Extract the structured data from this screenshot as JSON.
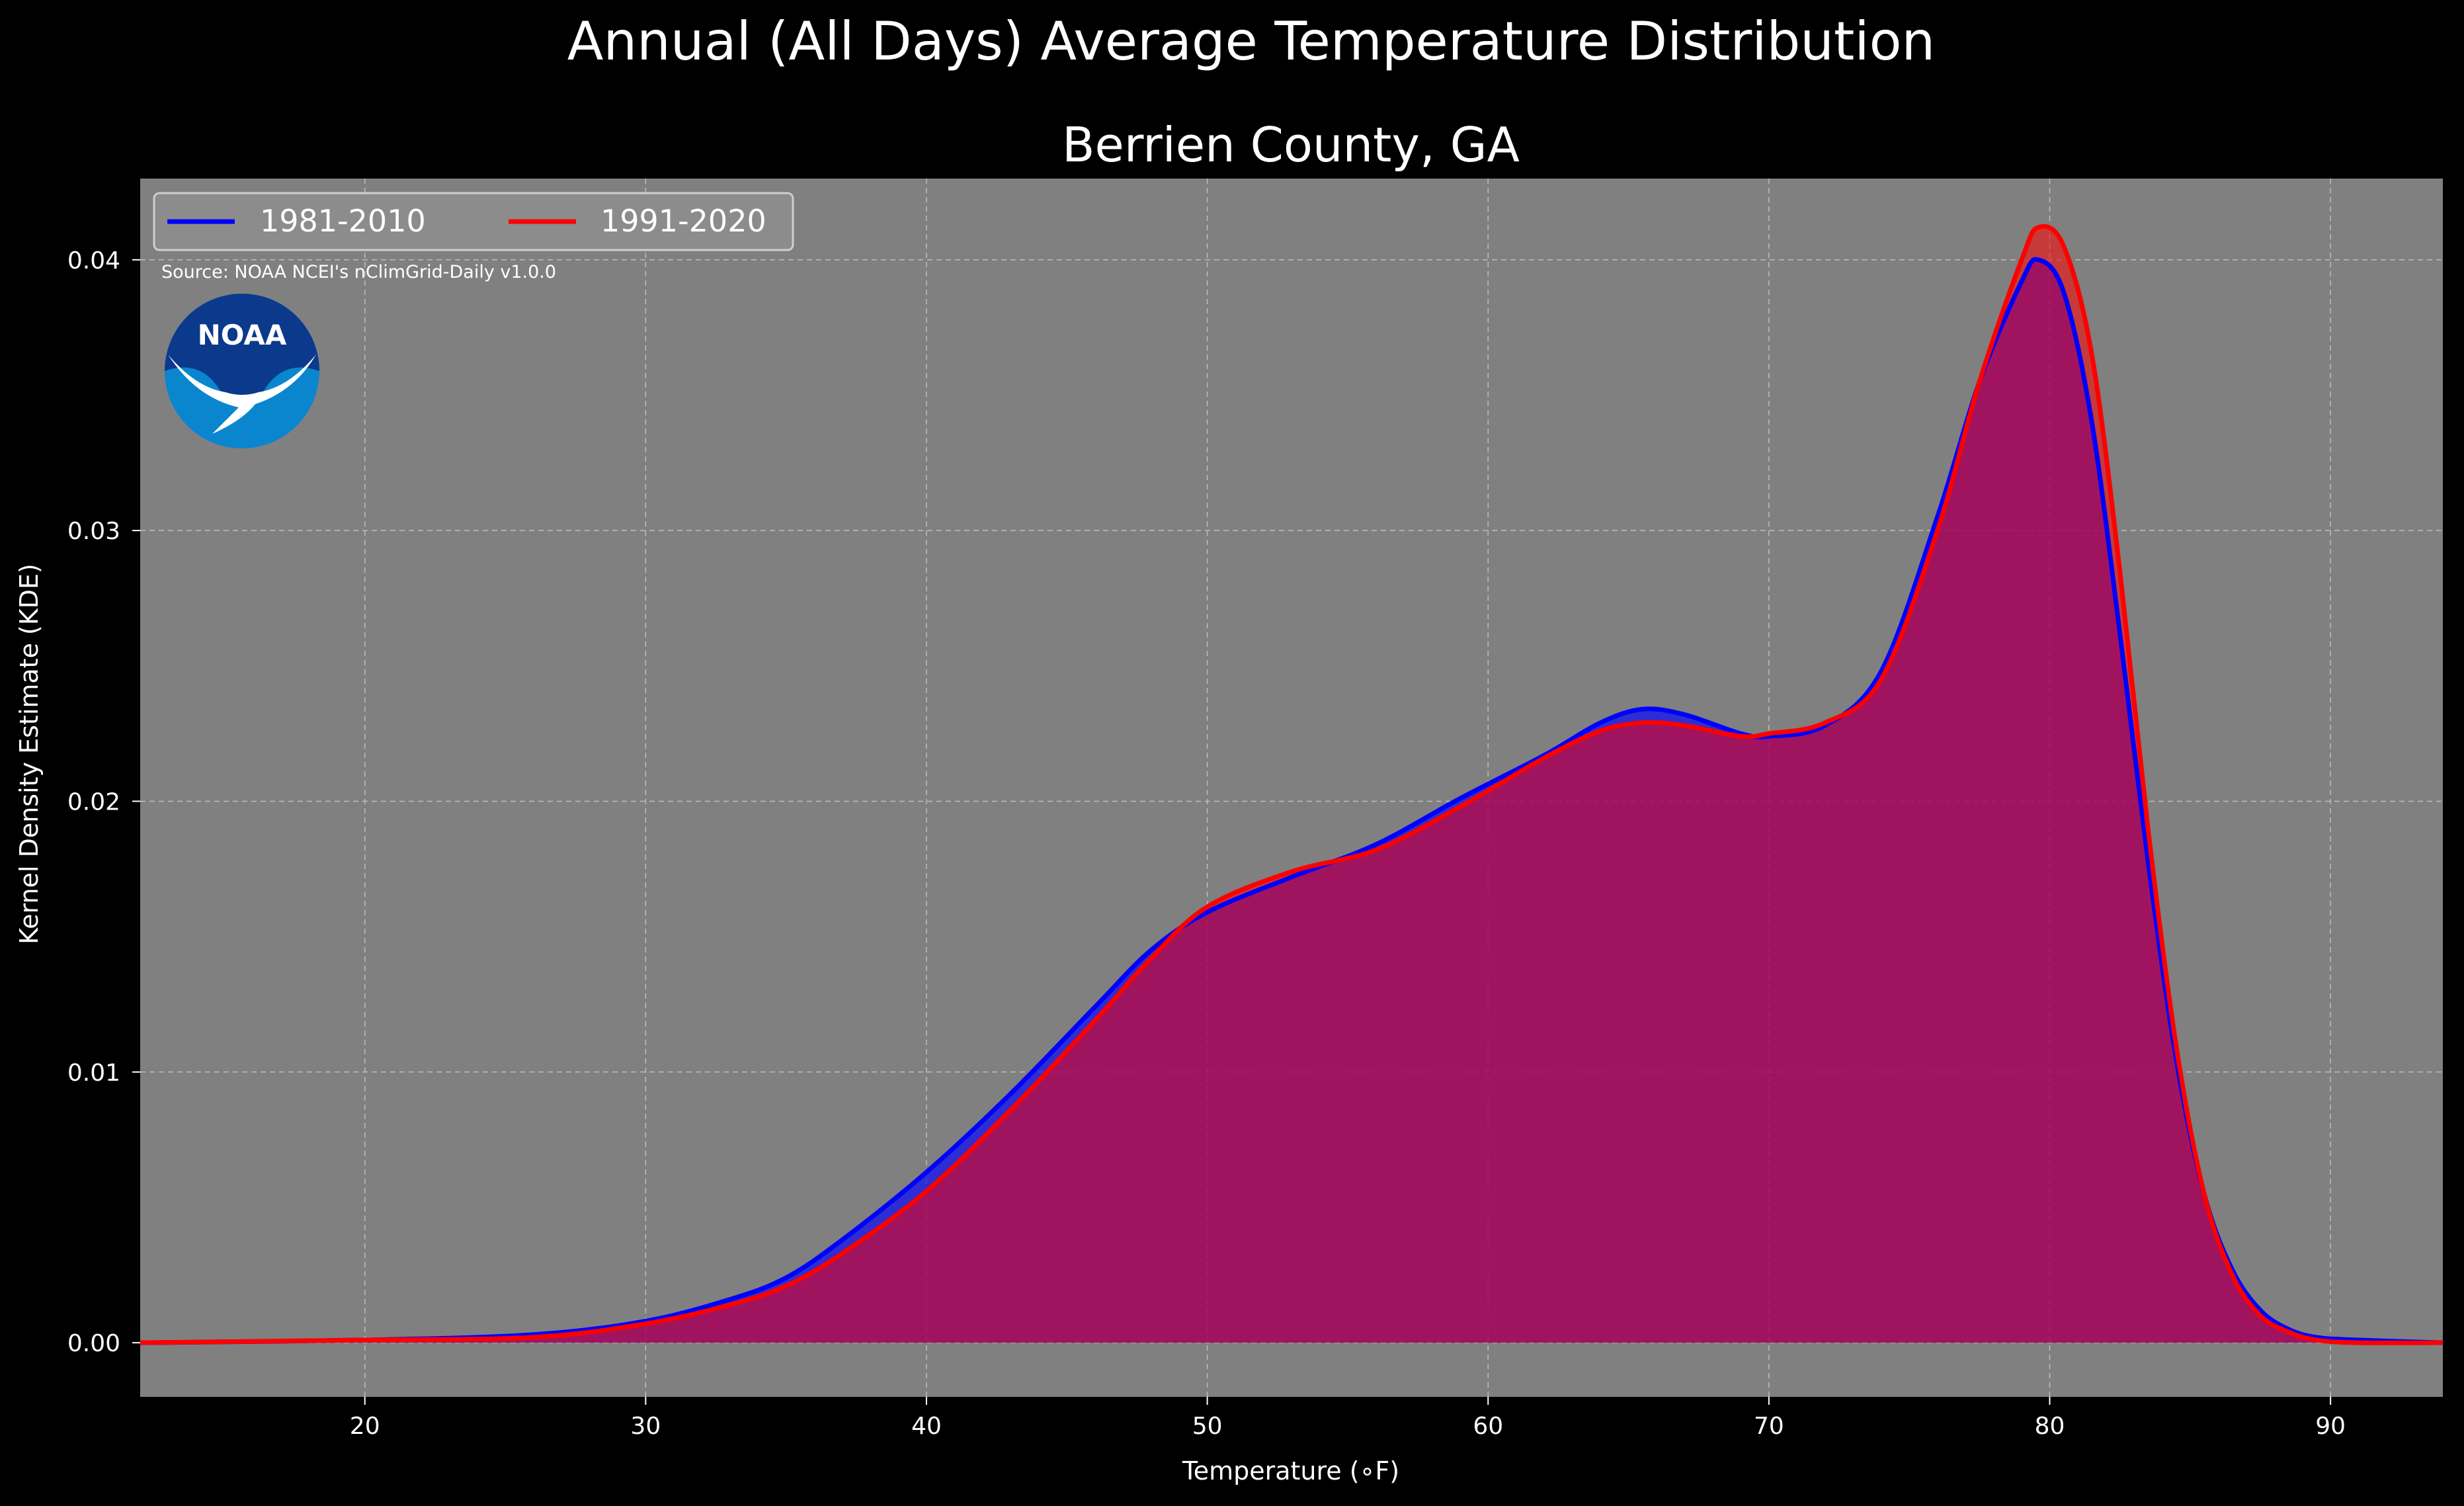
{
  "figure": {
    "suptitle": "Annual (All Days) Average Temperature Distribution",
    "source_note": "Source: NOAA NCEI's nClimGrid-Daily v1.0.0",
    "logo_text": "NOAA"
  },
  "colors": {
    "background": "#000000",
    "plot_bg": "#808080",
    "series_1981": "#0000ff",
    "series_1991": "#ff0000",
    "fill_blend": "#9e1e5c",
    "text": "#ffffff",
    "logo_dark": "#0b3a8c",
    "logo_light": "#0a86cf"
  },
  "chart_data": {
    "type": "area",
    "title": "Berrien County, GA",
    "xlabel": "Temperature ($^\\circ$F)",
    "xlabel_display": "Temperature (∘F)",
    "ylabel": "Kernel Density Estimate (KDE)",
    "xlim": [
      12,
      94
    ],
    "ylim": [
      -0.002,
      0.043
    ],
    "xticks": [
      20,
      30,
      40,
      50,
      60,
      70,
      80,
      90
    ],
    "yticks": [
      0.0,
      0.01,
      0.02,
      0.03,
      0.04
    ],
    "ytick_labels": [
      "0.00",
      "0.01",
      "0.02",
      "0.03",
      "0.04"
    ],
    "grid": true,
    "legend": {
      "placement": "top-left",
      "columns": 2
    },
    "series": [
      {
        "name": "1981-2010",
        "color": "#0000ff",
        "x": [
          12,
          20,
          26,
          30,
          33,
          35,
          37,
          40,
          43,
          46,
          48,
          50,
          53,
          56,
          59,
          62,
          64,
          65.5,
          67,
          69,
          70,
          72,
          74,
          76,
          77.5,
          79,
          79.6,
          80.5,
          81.5,
          82.5,
          83.5,
          84.5,
          85.5,
          86.5,
          87.5,
          88.5,
          89.5,
          91,
          94
        ],
        "values": [
          0.0,
          0.0001,
          0.0003,
          0.0008,
          0.0016,
          0.0024,
          0.0038,
          0.0063,
          0.0092,
          0.0124,
          0.0145,
          0.0159,
          0.0172,
          0.0184,
          0.0201,
          0.0217,
          0.0229,
          0.0234,
          0.0232,
          0.0225,
          0.0224,
          0.0228,
          0.0248,
          0.0305,
          0.0355,
          0.0392,
          0.04,
          0.0388,
          0.034,
          0.0262,
          0.0178,
          0.0105,
          0.0055,
          0.0027,
          0.0012,
          0.0005,
          0.0002,
          0.0001,
          0.0
        ]
      },
      {
        "name": "1991-2020",
        "color": "#ff0000",
        "x": [
          12,
          20,
          26,
          30,
          33,
          35,
          37,
          40,
          43,
          46,
          48,
          50,
          53,
          56,
          59,
          62,
          64,
          65.5,
          67,
          69,
          70,
          72,
          74,
          76,
          77.5,
          79,
          79.6,
          80.5,
          81.5,
          82.5,
          83.5,
          84.5,
          85.5,
          86.5,
          87.5,
          88.5,
          89.5,
          91,
          94
        ],
        "values": [
          0.0,
          0.0001,
          0.0002,
          0.0007,
          0.0014,
          0.0021,
          0.0033,
          0.0056,
          0.0086,
          0.0119,
          0.0142,
          0.0161,
          0.0174,
          0.0182,
          0.0198,
          0.0216,
          0.0226,
          0.0229,
          0.0228,
          0.0224,
          0.0225,
          0.0229,
          0.0245,
          0.03,
          0.0355,
          0.04,
          0.0412,
          0.0405,
          0.0365,
          0.0285,
          0.019,
          0.011,
          0.0055,
          0.0025,
          0.001,
          0.0004,
          0.0001,
          0.0,
          0.0
        ]
      }
    ]
  }
}
